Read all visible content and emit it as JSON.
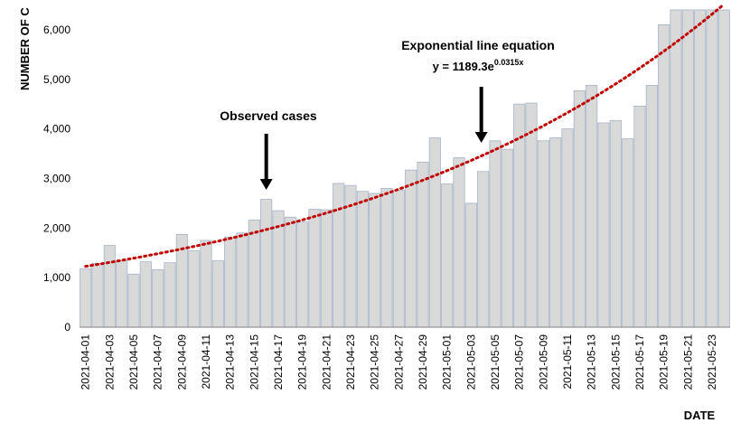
{
  "chart_data": {
    "type": "bar",
    "xlabel": "DATE",
    "ylabel": "NUMBER OF C",
    "ylim": [
      0,
      6600
    ],
    "yticks": [
      0,
      1000,
      2000,
      3000,
      4000,
      5000,
      6000
    ],
    "ytick_labels": [
      "0",
      "1,000",
      "2,000",
      "3,000",
      "4,000",
      "5,000",
      "6,000"
    ],
    "grid": false,
    "bar_color": "#d9d9d9",
    "bar_edge_color": "#a6b4c8",
    "trend_color": "#c00000",
    "categories": [
      "2021-04-01",
      "2021-04-02",
      "2021-04-03",
      "2021-04-04",
      "2021-04-05",
      "2021-04-06",
      "2021-04-07",
      "2021-04-08",
      "2021-04-09",
      "2021-04-10",
      "2021-04-11",
      "2021-04-12",
      "2021-04-13",
      "2021-04-14",
      "2021-04-15",
      "2021-04-16",
      "2021-04-17",
      "2021-04-18",
      "2021-04-19",
      "2021-04-20",
      "2021-04-21",
      "2021-04-22",
      "2021-04-23",
      "2021-04-24",
      "2021-04-25",
      "2021-04-26",
      "2021-04-27",
      "2021-04-28",
      "2021-04-29",
      "2021-04-30",
      "2021-05-01",
      "2021-05-02",
      "2021-05-03",
      "2021-05-04",
      "2021-05-05",
      "2021-05-06",
      "2021-05-07",
      "2021-05-08",
      "2021-05-09",
      "2021-05-10",
      "2021-05-11",
      "2021-05-12",
      "2021-05-13",
      "2021-05-14",
      "2021-05-15",
      "2021-05-16",
      "2021-05-17",
      "2021-05-18",
      "2021-05-19",
      "2021-05-20",
      "2021-05-21",
      "2021-05-22",
      "2021-05-23",
      "2021-05-24"
    ],
    "x_tick_labels": [
      "2021-04-01",
      "2021-04-03",
      "2021-04-05",
      "2021-04-07",
      "2021-04-09",
      "2021-04-11",
      "2021-04-13",
      "2021-04-15",
      "2021-04-17",
      "2021-04-19",
      "2021-04-21",
      "2021-04-23",
      "2021-04-25",
      "2021-04-27",
      "2021-04-29",
      "2021-05-01",
      "2021-05-03",
      "2021-05-05",
      "2021-05-07",
      "2021-05-09",
      "2021-05-11",
      "2021-05-13",
      "2021-05-15",
      "2021-05-17",
      "2021-05-19",
      "2021-05-21",
      "2021-05-23"
    ],
    "series": [
      {
        "values": [
          1180,
          1290,
          1650,
          1340,
          1070,
          1320,
          1160,
          1300,
          1870,
          1540,
          1750,
          1340,
          1820,
          1900,
          2160,
          2580,
          2350,
          2220,
          2120,
          2380,
          2370,
          2900,
          2860,
          2740,
          2700,
          2800,
          2760,
          3170,
          3330,
          3820,
          2890,
          3420,
          2500,
          3140,
          3760,
          3590,
          4500,
          4520,
          3760,
          3820,
          4000,
          4770,
          4880,
          4120,
          4170,
          3800,
          4460,
          4880,
          6100,
          6400,
          6400,
          6400,
          6400,
          6400
        ]
      }
    ],
    "trendline": {
      "type": "exponential",
      "a": 1189.3,
      "b": 0.0315
    },
    "annotations": [
      {
        "text": "Observed cases",
        "arrow_to": "2021-04-16"
      },
      {
        "text": "Exponential line equation",
        "equation_prefix": "y = 1189.3e",
        "equation_exponent": "0.0315x",
        "arrow_to": "2021-05-04"
      }
    ]
  }
}
